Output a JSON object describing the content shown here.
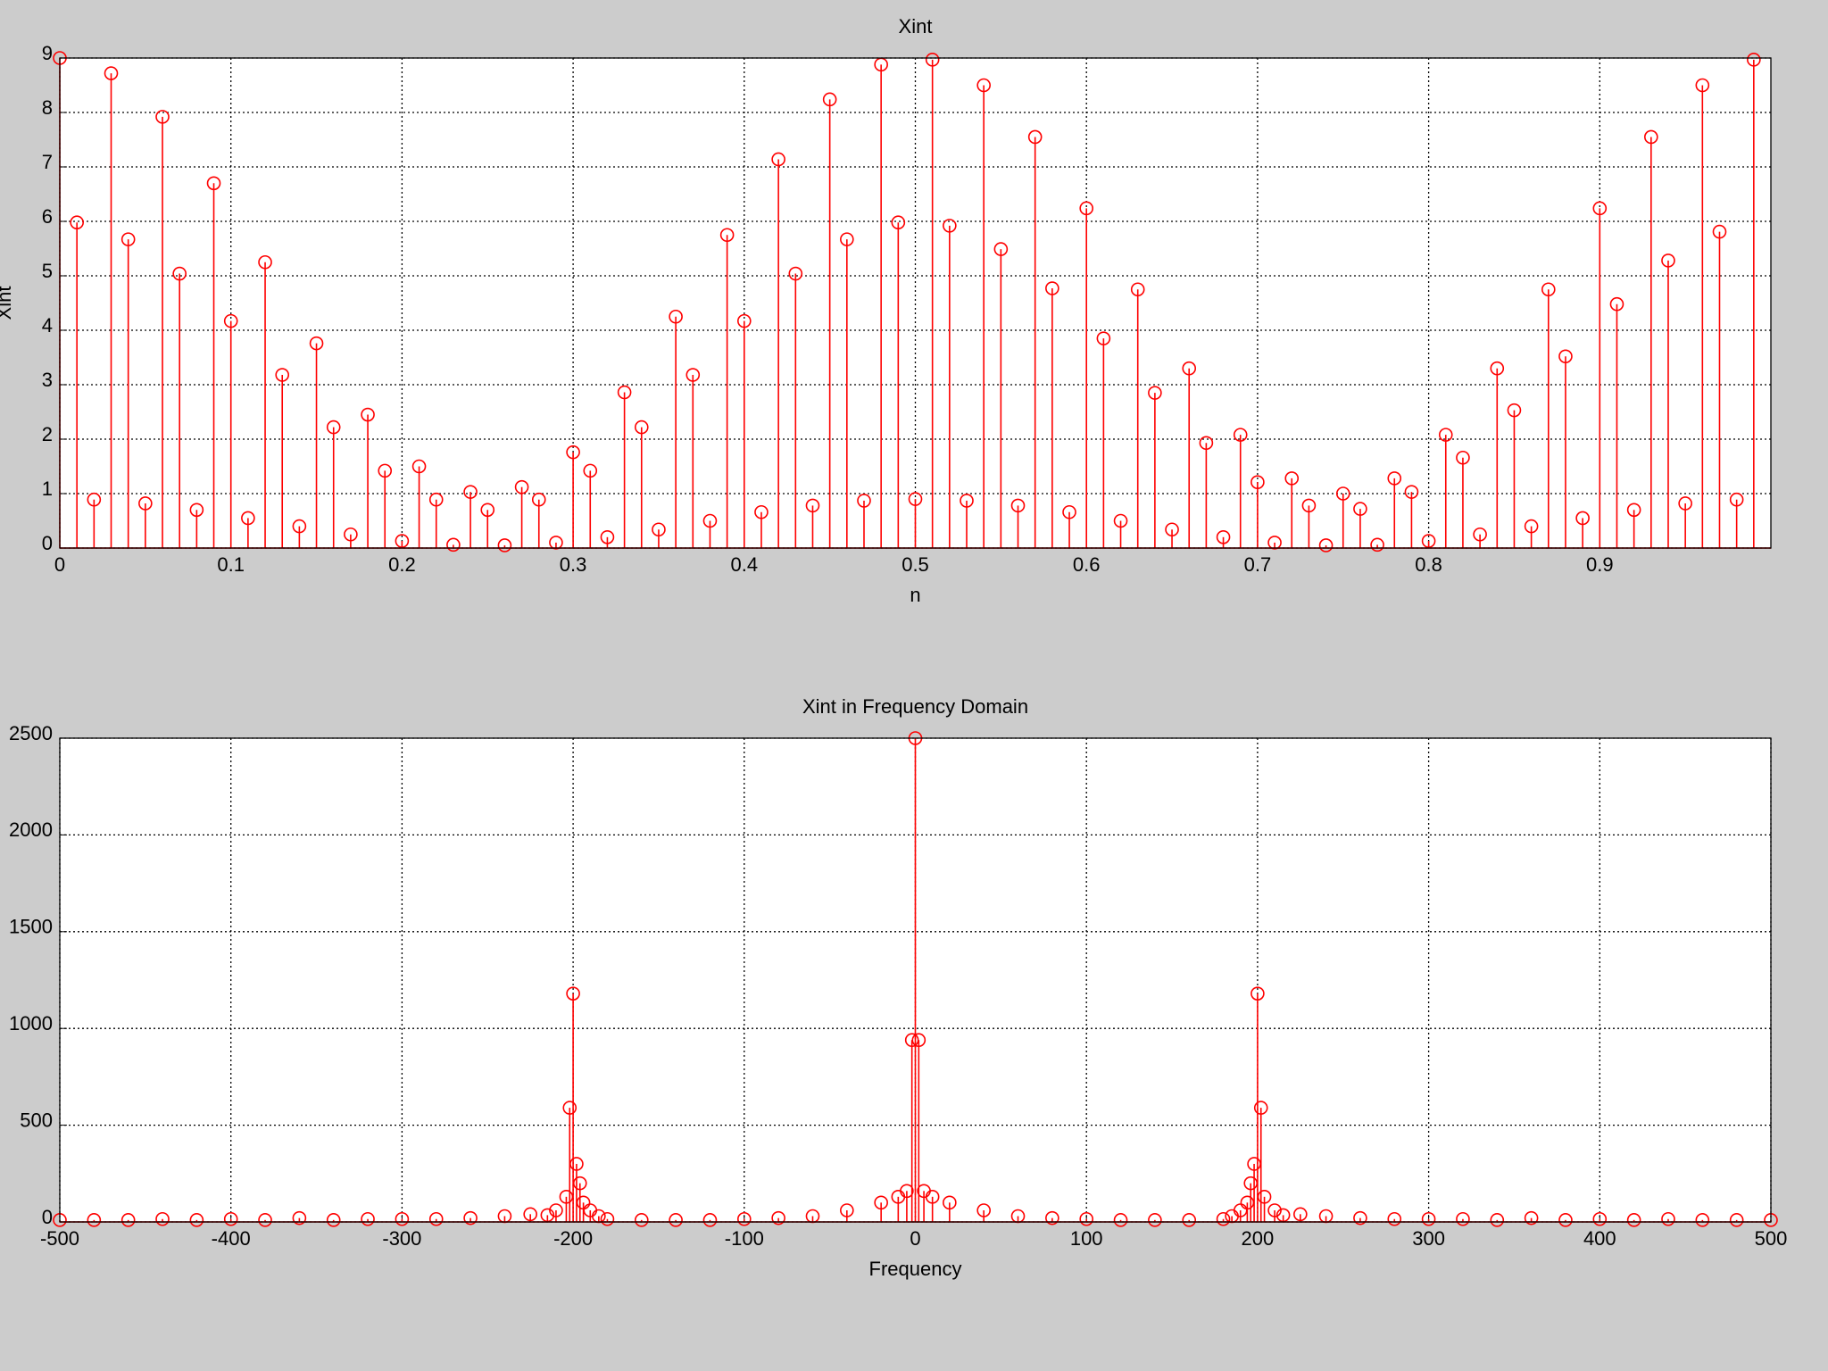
{
  "chart_data": [
    {
      "type": "stem",
      "title": "Xint",
      "xlabel": "n",
      "ylabel": "Xint",
      "color": "#ff0000",
      "grid": true,
      "xlim": [
        0,
        1
      ],
      "ylim": [
        0,
        9
      ],
      "xticks": [
        0,
        0.1,
        0.2,
        0.3,
        0.4,
        0.5,
        0.6,
        0.7,
        0.8,
        0.9
      ],
      "yticks": [
        0,
        1,
        2,
        3,
        4,
        5,
        6,
        7,
        8,
        9
      ],
      "x": [
        0,
        0.01,
        0.02,
        0.03,
        0.04,
        0.05,
        0.06,
        0.07,
        0.08,
        0.09,
        0.1,
        0.11,
        0.12,
        0.13,
        0.14,
        0.15,
        0.16,
        0.17,
        0.18,
        0.19,
        0.2,
        0.21,
        0.22,
        0.23,
        0.24,
        0.25,
        0.26,
        0.27,
        0.28,
        0.29,
        0.3,
        0.31,
        0.32,
        0.33,
        0.34,
        0.35,
        0.36,
        0.37,
        0.38,
        0.39,
        0.4,
        0.41,
        0.42,
        0.43,
        0.44,
        0.45,
        0.46,
        0.47,
        0.48,
        0.49,
        0.5,
        0.51,
        0.52,
        0.53,
        0.54,
        0.55,
        0.56,
        0.57,
        0.58,
        0.59,
        0.6,
        0.61,
        0.62,
        0.63,
        0.64,
        0.65,
        0.66,
        0.67,
        0.68,
        0.69,
        0.7,
        0.71,
        0.72,
        0.73,
        0.74,
        0.75,
        0.76,
        0.77,
        0.78,
        0.79,
        0.8,
        0.81,
        0.82,
        0.83,
        0.84,
        0.85,
        0.86,
        0.87,
        0.88,
        0.89,
        0.9,
        0.91,
        0.92,
        0.93,
        0.94,
        0.95,
        0.96,
        0.97,
        0.98,
        0.99
      ],
      "values": [
        9,
        5.98,
        0.89,
        8.72,
        5.67,
        0.82,
        7.92,
        5.04,
        0.7,
        6.7,
        4.17,
        0.55,
        5.25,
        3.18,
        0.4,
        3.76,
        2.22,
        0.25,
        2.45,
        1.42,
        0.13,
        1.5,
        0.89,
        0.06,
        1.03,
        0.7,
        0.05,
        1.12,
        0.89,
        0.1,
        1.76,
        1.42,
        0.2,
        2.86,
        2.22,
        0.34,
        4.25,
        3.18,
        0.5,
        5.75,
        4.17,
        0.66,
        7.14,
        5.04,
        0.78,
        8.24,
        5.67,
        0.87,
        8.88,
        5.98,
        0.9,
        8.97,
        5.92,
        0.87,
        8.5,
        5.49,
        0.78,
        7.55,
        4.77,
        0.66,
        6.24,
        3.85,
        0.5,
        4.75,
        2.85,
        0.34,
        3.3,
        1.93,
        0.2,
        2.08,
        1.21,
        0.1,
        1.28,
        0.78,
        0.05,
        1,
        0.72,
        0.06,
        1.28,
        1.03,
        0.13,
        2.08,
        1.66,
        0.25,
        3.3,
        2.53,
        0.4,
        4.75,
        3.52,
        0.55,
        6.24,
        4.48,
        0.7,
        7.55,
        5.28,
        0.82,
        8.5,
        5.81,
        0.89,
        8.97
      ]
    },
    {
      "type": "stem",
      "title": "Xint in Frequency Domain",
      "xlabel": "Frequency",
      "color": "#ff0000",
      "grid": true,
      "xlim": [
        -500,
        500
      ],
      "ylim": [
        0,
        2500
      ],
      "xticks": [
        -500,
        -400,
        -300,
        -200,
        -100,
        0,
        100,
        200,
        300,
        400,
        500
      ],
      "yticks": [
        0,
        500,
        1000,
        1500,
        2000,
        2500
      ],
      "x": [
        -500,
        -480,
        -460,
        -440,
        -420,
        -400,
        -380,
        -360,
        -340,
        -320,
        -300,
        -280,
        -260,
        -240,
        -225,
        -215,
        -210,
        -204,
        -202,
        -200,
        -198,
        -196,
        -194,
        -190,
        -185,
        -180,
        -160,
        -140,
        -120,
        -100,
        -80,
        -60,
        -40,
        -20,
        -10,
        -5,
        -2,
        0,
        2,
        5,
        10,
        20,
        40,
        60,
        80,
        100,
        120,
        140,
        160,
        180,
        185,
        190,
        194,
        196,
        198,
        200,
        202,
        204,
        210,
        215,
        225,
        240,
        260,
        280,
        300,
        320,
        340,
        360,
        380,
        400,
        420,
        440,
        460,
        480,
        500
      ],
      "values": [
        10,
        10,
        10,
        15,
        10,
        15,
        10,
        20,
        10,
        15,
        15,
        15,
        20,
        30,
        40,
        35,
        60,
        130,
        590,
        1180,
        300,
        200,
        100,
        60,
        30,
        15,
        10,
        10,
        10,
        15,
        20,
        30,
        60,
        100,
        130,
        160,
        940,
        2500,
        940,
        160,
        130,
        100,
        60,
        30,
        20,
        15,
        10,
        10,
        10,
        15,
        30,
        60,
        100,
        200,
        300,
        1180,
        590,
        130,
        60,
        35,
        40,
        30,
        20,
        15,
        15,
        15,
        10,
        20,
        10,
        15,
        10,
        15,
        10,
        10,
        10
      ]
    }
  ]
}
